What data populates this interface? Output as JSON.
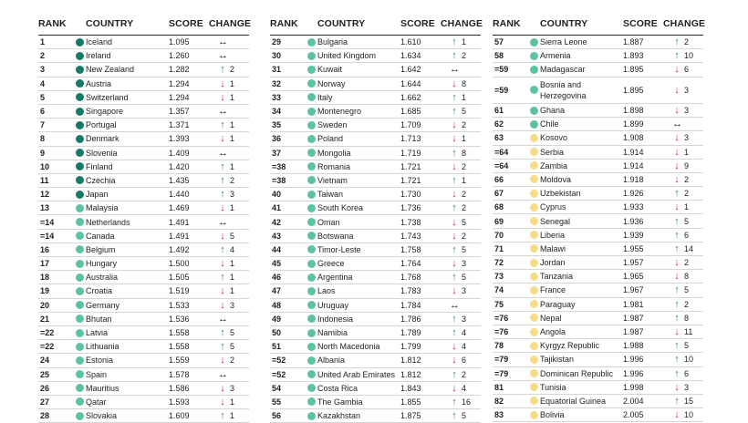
{
  "headers": {
    "rank": "RANK",
    "country": "COUNTRY",
    "score": "SCORE",
    "change": "CHANGE"
  },
  "colors": {
    "dark_green": "#177a67",
    "teal": "#5cc3a1",
    "yellow": "#f7dc86"
  },
  "icons": {
    "up": "↑",
    "down": "↓",
    "same": "↔"
  },
  "columns": [
    [
      {
        "rank": "1",
        "country": "Iceland",
        "score": "1.095",
        "dir": "same",
        "change": "",
        "dot": "dark_green"
      },
      {
        "rank": "2",
        "country": "Ireland",
        "score": "1.260",
        "dir": "same",
        "change": "",
        "dot": "dark_green"
      },
      {
        "rank": "3",
        "country": "New Zealand",
        "score": "1.282",
        "dir": "up",
        "change": "2",
        "dot": "dark_green"
      },
      {
        "rank": "4",
        "country": "Austria",
        "score": "1.294",
        "dir": "down",
        "change": "1",
        "dot": "dark_green"
      },
      {
        "rank": "5",
        "country": "Switzerland",
        "score": "1.294",
        "dir": "down",
        "change": "1",
        "dot": "dark_green"
      },
      {
        "rank": "6",
        "country": "Singapore",
        "score": "1.357",
        "dir": "same",
        "change": "",
        "dot": "dark_green"
      },
      {
        "rank": "7",
        "country": "Portugal",
        "score": "1.371",
        "dir": "up",
        "change": "1",
        "dot": "dark_green"
      },
      {
        "rank": "8",
        "country": "Denmark",
        "score": "1.393",
        "dir": "down",
        "change": "1",
        "dot": "dark_green"
      },
      {
        "rank": "9",
        "country": "Slovenia",
        "score": "1.409",
        "dir": "same",
        "change": "",
        "dot": "dark_green"
      },
      {
        "rank": "10",
        "country": "Finland",
        "score": "1.420",
        "dir": "up",
        "change": "1",
        "dot": "dark_green"
      },
      {
        "rank": "11",
        "country": "Czechia",
        "score": "1.435",
        "dir": "up",
        "change": "2",
        "dot": "dark_green"
      },
      {
        "rank": "12",
        "country": "Japan",
        "score": "1.440",
        "dir": "up",
        "change": "3",
        "dot": "dark_green"
      },
      {
        "rank": "13",
        "country": "Malaysia",
        "score": "1.469",
        "dir": "down",
        "change": "1",
        "dot": "teal"
      },
      {
        "rank": "=14",
        "country": "Netherlands",
        "score": "1.491",
        "dir": "same",
        "change": "",
        "dot": "teal"
      },
      {
        "rank": "=14",
        "country": "Canada",
        "score": "1.491",
        "dir": "down",
        "change": "5",
        "dot": "teal"
      },
      {
        "rank": "16",
        "country": "Belgium",
        "score": "1.492",
        "dir": "up",
        "change": "4",
        "dot": "teal"
      },
      {
        "rank": "17",
        "country": "Hungary",
        "score": "1.500",
        "dir": "down",
        "change": "1",
        "dot": "teal"
      },
      {
        "rank": "18",
        "country": "Australia",
        "score": "1.505",
        "dir": "up",
        "change": "1",
        "dot": "teal"
      },
      {
        "rank": "19",
        "country": "Croatia",
        "score": "1.519",
        "dir": "down",
        "change": "1",
        "dot": "teal"
      },
      {
        "rank": "20",
        "country": "Germany",
        "score": "1.533",
        "dir": "down",
        "change": "3",
        "dot": "teal"
      },
      {
        "rank": "21",
        "country": "Bhutan",
        "score": "1.536",
        "dir": "same",
        "change": "",
        "dot": "teal"
      },
      {
        "rank": "=22",
        "country": "Latvia",
        "score": "1.558",
        "dir": "up",
        "change": "5",
        "dot": "teal"
      },
      {
        "rank": "=22",
        "country": "Lithuania",
        "score": "1.558",
        "dir": "up",
        "change": "5",
        "dot": "teal"
      },
      {
        "rank": "24",
        "country": "Estonia",
        "score": "1.559",
        "dir": "down",
        "change": "2",
        "dot": "teal"
      },
      {
        "rank": "25",
        "country": "Spain",
        "score": "1.578",
        "dir": "same",
        "change": "",
        "dot": "teal"
      },
      {
        "rank": "26",
        "country": "Mauritius",
        "score": "1.586",
        "dir": "down",
        "change": "3",
        "dot": "teal"
      },
      {
        "rank": "27",
        "country": "Qatar",
        "score": "1.593",
        "dir": "down",
        "change": "1",
        "dot": "teal"
      },
      {
        "rank": "28",
        "country": "Slovakia",
        "score": "1.609",
        "dir": "up",
        "change": "1",
        "dot": "teal"
      }
    ],
    [
      {
        "rank": "29",
        "country": "Bulgaria",
        "score": "1.610",
        "dir": "up",
        "change": "1",
        "dot": "teal"
      },
      {
        "rank": "30",
        "country": "United Kingdom",
        "score": "1.634",
        "dir": "up",
        "change": "2",
        "dot": "teal"
      },
      {
        "rank": "31",
        "country": "Kuwait",
        "score": "1.642",
        "dir": "same",
        "change": "",
        "dot": "teal"
      },
      {
        "rank": "32",
        "country": "Norway",
        "score": "1.644",
        "dir": "down",
        "change": "8",
        "dot": "teal"
      },
      {
        "rank": "33",
        "country": "Italy",
        "score": "1.662",
        "dir": "up",
        "change": "1",
        "dot": "teal"
      },
      {
        "rank": "34",
        "country": "Montenegro",
        "score": "1.685",
        "dir": "up",
        "change": "5",
        "dot": "teal"
      },
      {
        "rank": "35",
        "country": "Sweden",
        "score": "1.709",
        "dir": "down",
        "change": "2",
        "dot": "teal"
      },
      {
        "rank": "36",
        "country": "Poland",
        "score": "1.713",
        "dir": "down",
        "change": "1",
        "dot": "teal"
      },
      {
        "rank": "37",
        "country": "Mongolia",
        "score": "1.719",
        "dir": "up",
        "change": "8",
        "dot": "teal"
      },
      {
        "rank": "=38",
        "country": "Romania",
        "score": "1.721",
        "dir": "down",
        "change": "2",
        "dot": "teal"
      },
      {
        "rank": "=38",
        "country": "Vietnam",
        "score": "1.721",
        "dir": "up",
        "change": "1",
        "dot": "teal"
      },
      {
        "rank": "40",
        "country": "Taiwan",
        "score": "1.730",
        "dir": "down",
        "change": "2",
        "dot": "teal"
      },
      {
        "rank": "41",
        "country": "South Korea",
        "score": "1.736",
        "dir": "up",
        "change": "2",
        "dot": "teal"
      },
      {
        "rank": "42",
        "country": "Oman",
        "score": "1.738",
        "dir": "down",
        "change": "5",
        "dot": "teal"
      },
      {
        "rank": "43",
        "country": "Botswana",
        "score": "1.743",
        "dir": "down",
        "change": "2",
        "dot": "teal"
      },
      {
        "rank": "44",
        "country": "Timor-Leste",
        "score": "1.758",
        "dir": "up",
        "change": "5",
        "dot": "teal"
      },
      {
        "rank": "45",
        "country": "Greece",
        "score": "1.764",
        "dir": "down",
        "change": "3",
        "dot": "teal"
      },
      {
        "rank": "46",
        "country": "Argentina",
        "score": "1.768",
        "dir": "up",
        "change": "5",
        "dot": "teal"
      },
      {
        "rank": "47",
        "country": "Laos",
        "score": "1.783",
        "dir": "down",
        "change": "3",
        "dot": "teal"
      },
      {
        "rank": "48",
        "country": "Uruguay",
        "score": "1.784",
        "dir": "same",
        "change": "",
        "dot": "teal"
      },
      {
        "rank": "49",
        "country": "Indonesia",
        "score": "1.786",
        "dir": "up",
        "change": "3",
        "dot": "teal"
      },
      {
        "rank": "50",
        "country": "Namibia",
        "score": "1.789",
        "dir": "up",
        "change": "4",
        "dot": "teal"
      },
      {
        "rank": "51",
        "country": "North Macedonia",
        "score": "1.799",
        "dir": "down",
        "change": "4",
        "dot": "teal"
      },
      {
        "rank": "=52",
        "country": "Albania",
        "score": "1.812",
        "dir": "down",
        "change": "6",
        "dot": "teal"
      },
      {
        "rank": "=52",
        "country": "United Arab Emirates",
        "score": "1.812",
        "dir": "up",
        "change": "2",
        "dot": "teal"
      },
      {
        "rank": "54",
        "country": "Costa Rica",
        "score": "1.843",
        "dir": "down",
        "change": "4",
        "dot": "teal"
      },
      {
        "rank": "55",
        "country": "The Gambia",
        "score": "1.855",
        "dir": "up",
        "change": "16",
        "dot": "teal"
      },
      {
        "rank": "56",
        "country": "Kazakhstan",
        "score": "1.875",
        "dir": "up",
        "change": "5",
        "dot": "teal"
      }
    ],
    [
      {
        "rank": "57",
        "country": "Sierra Leone",
        "score": "1.887",
        "dir": "up",
        "change": "2",
        "dot": "teal"
      },
      {
        "rank": "58",
        "country": "Armenia",
        "score": "1.893",
        "dir": "up",
        "change": "10",
        "dot": "teal"
      },
      {
        "rank": "=59",
        "country": "Madagascar",
        "score": "1.895",
        "dir": "down",
        "change": "6",
        "dot": "teal"
      },
      {
        "rank": "=59",
        "country": "Bosnia and Herzegovina",
        "score": "1.895",
        "dir": "down",
        "change": "3",
        "dot": "teal",
        "tall": true
      },
      {
        "rank": "61",
        "country": "Ghana",
        "score": "1.898",
        "dir": "down",
        "change": "3",
        "dot": "teal"
      },
      {
        "rank": "62",
        "country": "Chile",
        "score": "1.899",
        "dir": "same",
        "change": "",
        "dot": "teal"
      },
      {
        "rank": "63",
        "country": "Kosovo",
        "score": "1.908",
        "dir": "down",
        "change": "3",
        "dot": "yellow"
      },
      {
        "rank": "=64",
        "country": "Serbia",
        "score": "1.914",
        "dir": "down",
        "change": "1",
        "dot": "yellow"
      },
      {
        "rank": "=64",
        "country": "Zambia",
        "score": "1.914",
        "dir": "down",
        "change": "9",
        "dot": "yellow"
      },
      {
        "rank": "66",
        "country": "Moldova",
        "score": "1.918",
        "dir": "down",
        "change": "2",
        "dot": "yellow"
      },
      {
        "rank": "67",
        "country": "Uzbekistan",
        "score": "1.926",
        "dir": "up",
        "change": "2",
        "dot": "yellow"
      },
      {
        "rank": "68",
        "country": "Cyprus",
        "score": "1.933",
        "dir": "down",
        "change": "1",
        "dot": "yellow"
      },
      {
        "rank": "69",
        "country": "Senegal",
        "score": "1.936",
        "dir": "up",
        "change": "5",
        "dot": "yellow"
      },
      {
        "rank": "70",
        "country": "Liberia",
        "score": "1.939",
        "dir": "up",
        "change": "6",
        "dot": "yellow"
      },
      {
        "rank": "71",
        "country": "Malawi",
        "score": "1.955",
        "dir": "up",
        "change": "14",
        "dot": "yellow"
      },
      {
        "rank": "72",
        "country": "Jordan",
        "score": "1.957",
        "dir": "down",
        "change": "2",
        "dot": "yellow"
      },
      {
        "rank": "73",
        "country": "Tanzania",
        "score": "1.965",
        "dir": "down",
        "change": "8",
        "dot": "yellow"
      },
      {
        "rank": "74",
        "country": "France",
        "score": "1.967",
        "dir": "up",
        "change": "5",
        "dot": "yellow"
      },
      {
        "rank": "75",
        "country": "Paraguay",
        "score": "1.981",
        "dir": "up",
        "change": "2",
        "dot": "yellow"
      },
      {
        "rank": "=76",
        "country": "Nepal",
        "score": "1.987",
        "dir": "up",
        "change": "8",
        "dot": "yellow"
      },
      {
        "rank": "=76",
        "country": "Angola",
        "score": "1.987",
        "dir": "down",
        "change": "11",
        "dot": "yellow"
      },
      {
        "rank": "78",
        "country": "Kyrgyz Republic",
        "score": "1.988",
        "dir": "up",
        "change": "5",
        "dot": "yellow"
      },
      {
        "rank": "=79",
        "country": "Tajikistan",
        "score": "1.996",
        "dir": "up",
        "change": "10",
        "dot": "yellow"
      },
      {
        "rank": "=79",
        "country": "Dominican Republic",
        "score": "1.996",
        "dir": "up",
        "change": "6",
        "dot": "yellow"
      },
      {
        "rank": "81",
        "country": "Tunisia",
        "score": "1.998",
        "dir": "down",
        "change": "3",
        "dot": "yellow"
      },
      {
        "rank": "82",
        "country": "Equatorial Guinea",
        "score": "2.004",
        "dir": "up",
        "change": "15",
        "dot": "yellow"
      },
      {
        "rank": "83",
        "country": "Bolivia",
        "score": "2.005",
        "dir": "down",
        "change": "10",
        "dot": "yellow"
      }
    ]
  ]
}
